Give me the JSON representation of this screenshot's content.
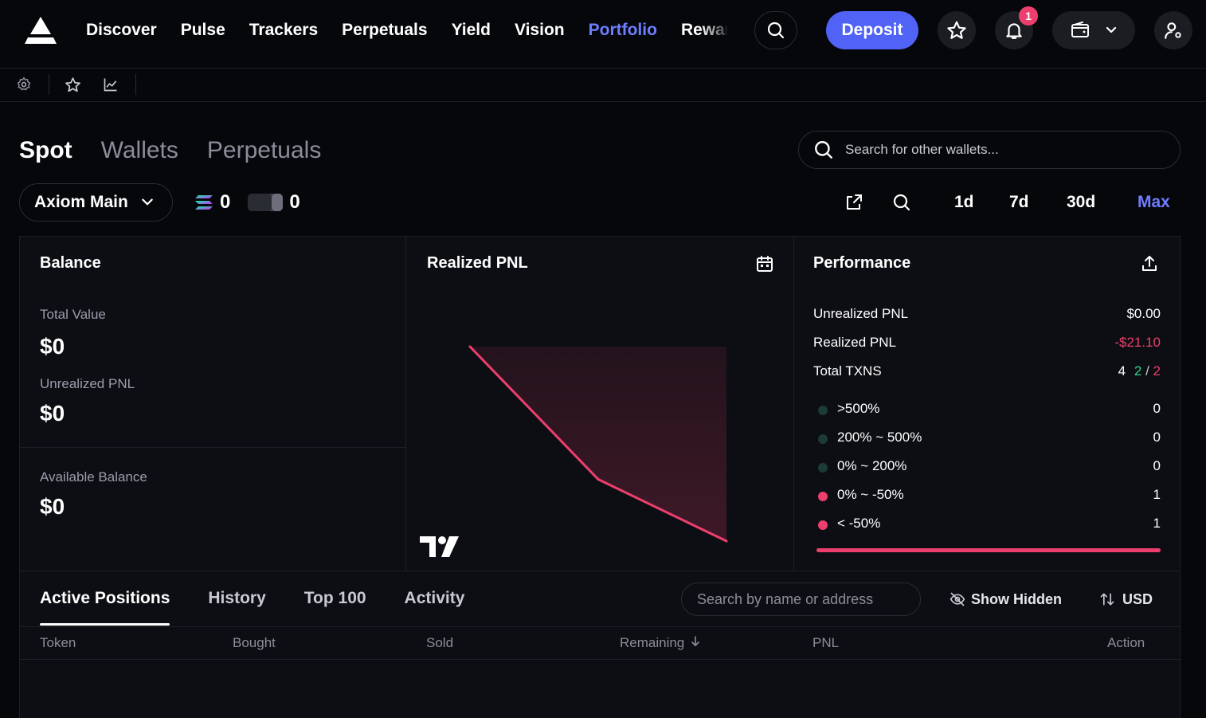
{
  "nav": {
    "items": [
      "Discover",
      "Pulse",
      "Trackers",
      "Perpetuals",
      "Yield",
      "Vision",
      "Portfolio",
      "Rewards"
    ],
    "active": "Portfolio",
    "deposit_label": "Deposit",
    "notification_count": "1"
  },
  "mode_tabs": [
    "Spot",
    "Wallets",
    "Perpetuals"
  ],
  "active_mode": "Spot",
  "wallet_search": {
    "placeholder": "Search for other wallets..."
  },
  "account": {
    "name": "Axiom Main"
  },
  "holdings": {
    "sol": "0",
    "usdc": "0"
  },
  "time_ranges": [
    "1d",
    "7d",
    "30d",
    "Max"
  ],
  "active_range": "Max",
  "balance": {
    "title": "Balance",
    "total_value_label": "Total Value",
    "total_value": "$0",
    "unrealized_label": "Unrealized PNL",
    "unrealized": "$0",
    "available_label": "Available Balance",
    "available": "$0"
  },
  "pnl_chart": {
    "title": "Realized PNL"
  },
  "chart_data": {
    "type": "area",
    "values": [
      0,
      -14.4,
      -21.1
    ],
    "color": "#ec3f6e"
  },
  "performance": {
    "title": "Performance",
    "unrealized_label": "Unrealized PNL",
    "unrealized": "$0.00",
    "realized_label": "Realized PNL",
    "realized": "-$21.10",
    "txns_label": "Total TXNS",
    "txns_total": "4",
    "txns_buys": "2",
    "txns_sep": "/",
    "txns_sells": "2",
    "buckets": [
      {
        "label": ">500%",
        "count": "0",
        "color": "#1c3b33"
      },
      {
        "label": "200% ~ 500%",
        "count": "0",
        "color": "#1c3b33"
      },
      {
        "label": "0% ~ 200%",
        "count": "0",
        "color": "#1c3b33"
      },
      {
        "label": "0% ~ -50%",
        "count": "1",
        "color": "#ec3f6e"
      },
      {
        "label": "< -50%",
        "count": "1",
        "color": "#ec3f6e"
      }
    ]
  },
  "positions": {
    "tabs": [
      "Active Positions",
      "History",
      "Top 100",
      "Activity"
    ],
    "active_tab": "Active Positions",
    "search_placeholder": "Search by name or address",
    "show_hidden_label": "Show Hidden",
    "currency_label": "USD",
    "columns": [
      "Token",
      "Bought",
      "Sold",
      "Remaining",
      "PNL",
      "Action"
    ]
  },
  "colors": {
    "accent": "#5063f6",
    "active_link": "#6f7dff",
    "negative": "#ec3f6e",
    "positive": "#2fd38a",
    "background": "#06070b"
  }
}
